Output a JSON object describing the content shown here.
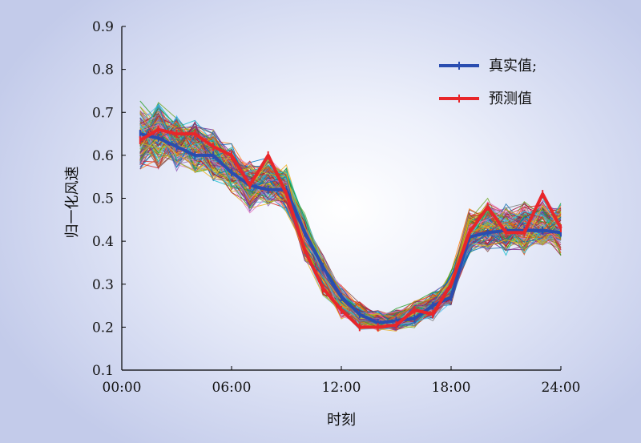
{
  "chart_data": {
    "type": "line",
    "title": "",
    "xlabel": "时刻",
    "ylabel": "归一化风速",
    "xlim": [
      0,
      24
    ],
    "ylim": [
      0.1,
      0.9
    ],
    "grid": false,
    "legend_position": "top-right",
    "x_ticks": [
      {
        "value": 0,
        "label": "00:00"
      },
      {
        "value": 6,
        "label": "06:00"
      },
      {
        "value": 12,
        "label": "12:00"
      },
      {
        "value": 18,
        "label": "18:00"
      },
      {
        "value": 24,
        "label": "24:00"
      }
    ],
    "y_ticks": [
      {
        "value": 0.1,
        "label": "0.1"
      },
      {
        "value": 0.2,
        "label": "0.2"
      },
      {
        "value": 0.3,
        "label": "0.3"
      },
      {
        "value": 0.4,
        "label": "0.4"
      },
      {
        "value": 0.5,
        "label": "0.5"
      },
      {
        "value": 0.6,
        "label": "0.6"
      },
      {
        "value": 0.7,
        "label": "0.7"
      },
      {
        "value": 0.8,
        "label": "0.8"
      },
      {
        "value": 0.9,
        "label": "0.9"
      }
    ],
    "x": [
      1,
      2,
      3,
      4,
      5,
      6,
      7,
      8,
      9,
      10,
      11,
      12,
      13,
      14,
      15,
      16,
      17,
      18,
      19,
      20,
      21,
      22,
      23,
      24
    ],
    "series": [
      {
        "name": "真实值;",
        "color": "#2a4db0",
        "values": [
          0.65,
          0.64,
          0.62,
          0.6,
          0.6,
          0.56,
          0.53,
          0.52,
          0.52,
          0.42,
          0.34,
          0.27,
          0.23,
          0.21,
          0.215,
          0.22,
          0.25,
          0.27,
          0.41,
          0.42,
          0.425,
          0.425,
          0.425,
          0.42
        ]
      },
      {
        "name": "预测值",
        "color": "#e8262a",
        "values": [
          0.635,
          0.66,
          0.65,
          0.65,
          0.62,
          0.6,
          0.53,
          0.6,
          0.51,
          0.38,
          0.29,
          0.24,
          0.2,
          0.2,
          0.205,
          0.24,
          0.23,
          0.3,
          0.42,
          0.48,
          0.42,
          0.42,
          0.51,
          0.43
        ]
      }
    ],
    "ensemble": {
      "description_visible": false,
      "member_count": 150,
      "center_values": [
        0.64,
        0.65,
        0.63,
        0.62,
        0.6,
        0.57,
        0.53,
        0.54,
        0.52,
        0.41,
        0.32,
        0.26,
        0.225,
        0.215,
        0.215,
        0.23,
        0.25,
        0.29,
        0.42,
        0.44,
        0.43,
        0.43,
        0.44,
        0.43
      ],
      "spread": [
        0.06,
        0.06,
        0.05,
        0.05,
        0.045,
        0.045,
        0.045,
        0.045,
        0.04,
        0.04,
        0.035,
        0.03,
        0.025,
        0.02,
        0.02,
        0.025,
        0.025,
        0.03,
        0.04,
        0.045,
        0.045,
        0.045,
        0.045,
        0.045
      ],
      "palette": [
        "#1f77b4",
        "#ff7f0e",
        "#2ca02c",
        "#d62728",
        "#9467bd",
        "#8c564b",
        "#e377c2",
        "#7f7f7f",
        "#bcbd22",
        "#17becf",
        "#0072bd",
        "#d95319",
        "#edb120",
        "#7e2f8e",
        "#77ac30",
        "#4dbeee",
        "#a2142f"
      ]
    }
  }
}
